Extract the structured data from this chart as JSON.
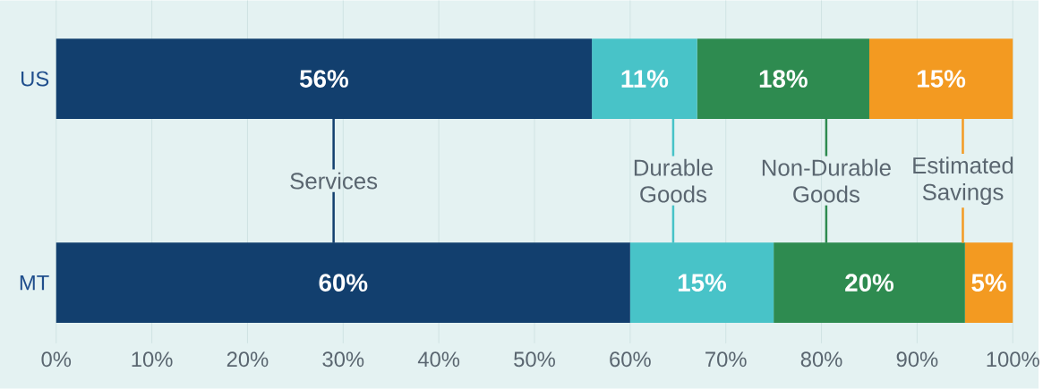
{
  "chart_data": {
    "type": "bar",
    "orientation": "horizontal",
    "stacked": true,
    "categories": [
      "US",
      "MT"
    ],
    "series": [
      {
        "name": "Services",
        "color": "#123f6e",
        "values": [
          56,
          60
        ],
        "value_labels": [
          "56%",
          "60%"
        ]
      },
      {
        "name": "Durable Goods",
        "color": "#48c3c8",
        "values": [
          11,
          15
        ],
        "value_labels": [
          "11%",
          "15%"
        ]
      },
      {
        "name": "Non-Durable Goods",
        "color": "#2e8b50",
        "values": [
          18,
          20
        ],
        "value_labels": [
          "18%",
          "20%"
        ]
      },
      {
        "name": "Estimated Savings",
        "color": "#f39a21",
        "values": [
          15,
          5
        ],
        "value_labels": [
          "15%",
          "5%"
        ]
      }
    ],
    "xlim": [
      0,
      100
    ],
    "xticks": [
      {
        "value": 0,
        "label": "0%"
      },
      {
        "value": 10,
        "label": "10%"
      },
      {
        "value": 20,
        "label": "20%"
      },
      {
        "value": 30,
        "label": "30%"
      },
      {
        "value": 40,
        "label": "40%"
      },
      {
        "value": 50,
        "label": "50%"
      },
      {
        "value": 60,
        "label": "60%"
      },
      {
        "value": 70,
        "label": "70%"
      },
      {
        "value": 80,
        "label": "80%"
      },
      {
        "value": 90,
        "label": "90%"
      },
      {
        "value": 100,
        "label": "100%"
      }
    ],
    "grid": "x",
    "legend": "center"
  }
}
